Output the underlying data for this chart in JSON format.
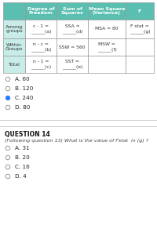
{
  "header_bg": "#5abfb0",
  "header_text_color": "#ffffff",
  "cell_bg_teal": "#c8ece8",
  "cell_bg_white": "#ffffff",
  "col_headers": [
    "Degree of\nFreedom",
    "Sum of\nSquares",
    "Mean Square\n(Variance)",
    "F"
  ],
  "row_labels": [
    "Among\ngroups",
    "Within\nGroups",
    "Total"
  ],
  "row0_cells": [
    "c - 1 =\n______(a)",
    "SSA =\n______(d)",
    "MSA = 80",
    "F stat =\n______(g)"
  ],
  "row1_cells": [
    "n - c =\n______(b)",
    "SSW = 560",
    "MSW =\n______(f)",
    ""
  ],
  "row2_cells": [
    "n - 1 =\n______(c)",
    "SST =\n______(e)",
    "",
    ""
  ],
  "options_q13": [
    "A. 60",
    "B. 120",
    "C. 240",
    "D. 80"
  ],
  "selected_q13": 2,
  "question14_title": "QUESTION 14",
  "question14_text": "(Following question 13) What is the value of Fstat  in (g) ?",
  "options_q14": [
    "A. 31",
    "B. 20",
    "C. 16",
    "D. 4"
  ],
  "selected_q14": -1,
  "bg_color": "#ffffff",
  "divider_color": "#bbbbbb",
  "table_border": "#999999",
  "text_color": "#333333"
}
